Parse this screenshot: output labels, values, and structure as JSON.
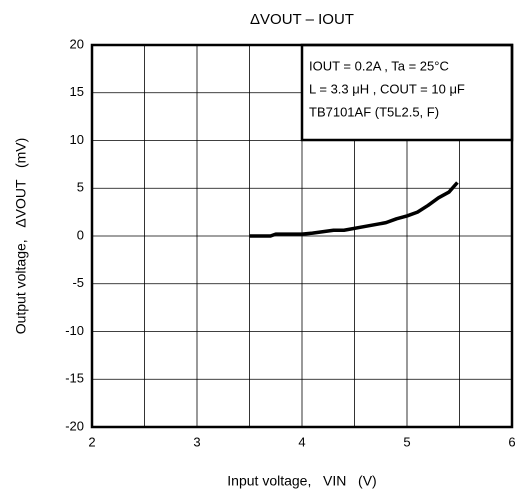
{
  "chart_data": {
    "type": "line",
    "title": "ΔVOUT – IOUT",
    "xlabel": "Input voltage,   VIN   (V)",
    "ylabel": "Output voltage,   ΔVOUT   (mV)",
    "annotations": [
      "IOUT = 0.2A , Ta = 25°C",
      "L = 3.3 μH , COUT = 10 μF",
      "TB7101AF (T5L2.5, F)"
    ],
    "x": [
      3.5,
      3.7,
      3.75,
      4.0,
      4.1,
      4.3,
      4.4,
      4.6,
      4.8,
      4.9,
      5.0,
      5.1,
      5.2,
      5.3,
      5.4,
      5.48
    ],
    "series": [
      {
        "color": "#000000",
        "values": [
          0,
          0,
          0.2,
          0.2,
          0.3,
          0.6,
          0.6,
          1.0,
          1.4,
          1.8,
          2.1,
          2.5,
          3.2,
          4.0,
          4.6,
          5.6
        ]
      }
    ],
    "xlim": [
      2,
      6
    ],
    "xticks": [
      2,
      3,
      4,
      5,
      6
    ],
    "xminor_ticks": [
      2.5,
      3.5,
      4.5,
      5.5
    ],
    "ylim": [
      -20,
      20
    ],
    "yticks": [
      -20,
      -15,
      -10,
      -5,
      0,
      5,
      10,
      15,
      20
    ],
    "grid": true
  }
}
